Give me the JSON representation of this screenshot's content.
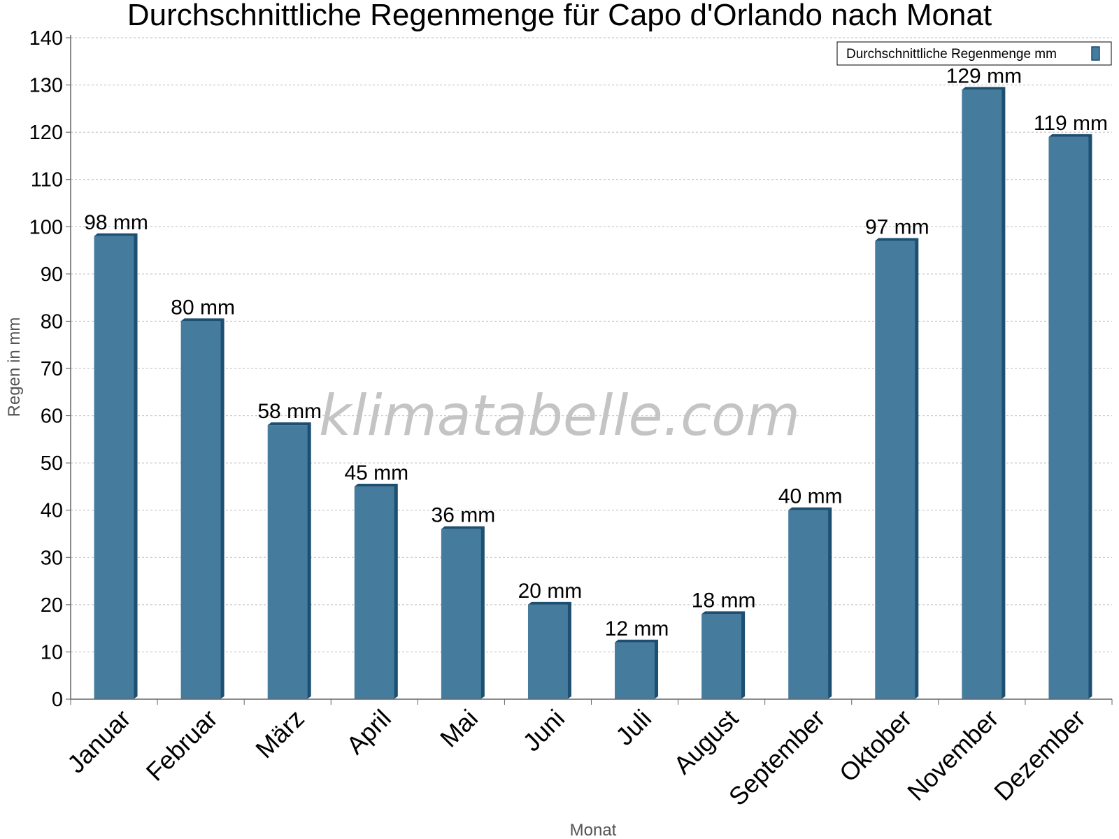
{
  "chart_data": {
    "type": "bar",
    "title": "Durchschnittliche Regenmenge für Capo d'Orlando nach Monat",
    "xlabel": "Monat",
    "ylabel": "Regen in mm",
    "ylim": [
      0,
      140
    ],
    "ytick_step": 10,
    "grid": true,
    "legend_position": "top-right",
    "categories": [
      "Januar",
      "Februar",
      "März",
      "April",
      "Mai",
      "Juni",
      "Juli",
      "August",
      "September",
      "Oktober",
      "November",
      "Dezember"
    ],
    "series": [
      {
        "name": "Durchschnittliche Regenmenge mm",
        "values": [
          98,
          80,
          58,
          45,
          36,
          20,
          12,
          18,
          40,
          97,
          129,
          119
        ],
        "labels": [
          "98 mm",
          "80 mm",
          "58 mm",
          "45 mm",
          "36 mm",
          "20 mm",
          "12 mm",
          "18 mm",
          "40 mm",
          "97 mm",
          "129 mm",
          "119 mm"
        ],
        "color": "#457b9d",
        "edge_color": "#1d4f71"
      }
    ]
  },
  "watermark": "klimatabelle.com"
}
